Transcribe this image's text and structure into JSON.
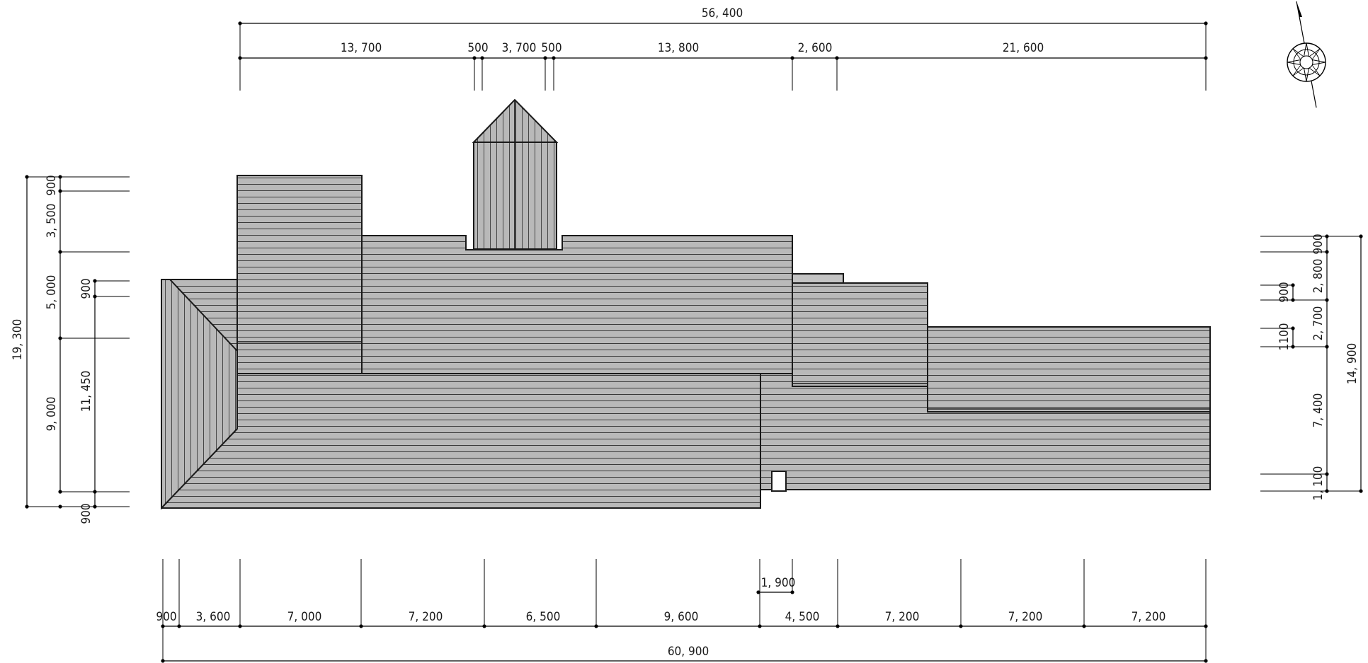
{
  "colors": {
    "roof_fill": "#b9b9b9",
    "line": "#1a1a1a",
    "background": "#ffffff"
  },
  "icons": {
    "north_arrow": "north-arrow-compass-icon"
  },
  "dimensions": {
    "top_overall": "56, 400",
    "top_segments": [
      "13, 700",
      "500",
      "3, 700",
      "500",
      "13, 800",
      "2, 600",
      "21, 600"
    ],
    "bottom_overall": "60, 900",
    "bottom_segments": [
      "900",
      "3, 600",
      "7, 000",
      "7, 200",
      "6, 500",
      "9, 600",
      "4, 500",
      "7, 200",
      "7, 200",
      "7, 200"
    ],
    "bottom_extra": "1, 900",
    "left_overall": "19, 300",
    "left_segments": [
      "900",
      "3, 500",
      "5, 000",
      "9, 000",
      "900"
    ],
    "left_inner": "11, 450",
    "left_inner_small": "900",
    "right_overall": "14, 900",
    "right_segments": [
      "900",
      "2, 800",
      "2, 700",
      "7, 400",
      "1, 100"
    ],
    "right_small_a": "900",
    "right_small_b": "1100"
  }
}
